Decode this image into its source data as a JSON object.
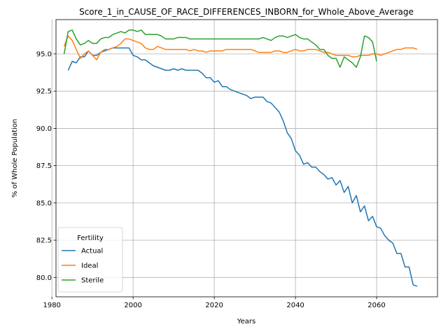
{
  "chart_data": {
    "type": "line",
    "title": "Score_1_in_CAUSE_OF_RACE_DIFFERENCES_INBORN_for_Whole_Above_Average",
    "xlabel": "Years",
    "ylabel": "% of Whole Population",
    "xlim": [
      1981,
      2075
    ],
    "ylim": [
      78.7,
      97.3
    ],
    "xticks": [
      1980,
      2000,
      2020,
      2040,
      2060
    ],
    "yticks": [
      80.0,
      82.5,
      85.0,
      87.5,
      90.0,
      92.5,
      95.0
    ],
    "xtick_labels": [
      "1980",
      "2000",
      "2020",
      "2040",
      "2060"
    ],
    "ytick_labels": [
      "80.0",
      "82.5",
      "85.0",
      "87.5",
      "90.0",
      "92.5",
      "95.0"
    ],
    "grid": true,
    "legend": {
      "title": "Fertility",
      "placement": "lower-left",
      "entries": [
        "Actual",
        "Ideal",
        "Sterile"
      ]
    },
    "series": [
      {
        "name": "Actual",
        "color": "#1f77b4",
        "points": [
          [
            1984,
            93.9
          ],
          [
            1985,
            94.5
          ],
          [
            1986,
            94.4
          ],
          [
            1987,
            94.8
          ],
          [
            1988,
            94.8
          ],
          [
            1989,
            95.2
          ],
          [
            1990,
            94.9
          ],
          [
            1991,
            94.9
          ],
          [
            1992,
            95.1
          ],
          [
            1993,
            95.2
          ],
          [
            1994,
            95.3
          ],
          [
            1995,
            95.4
          ],
          [
            1996,
            95.4
          ],
          [
            1997,
            95.4
          ],
          [
            1998,
            95.4
          ],
          [
            1999,
            95.4
          ],
          [
            2000,
            94.9
          ],
          [
            2001,
            94.8
          ],
          [
            2002,
            94.6
          ],
          [
            2003,
            94.6
          ],
          [
            2004,
            94.4
          ],
          [
            2005,
            94.2
          ],
          [
            2006,
            94.1
          ],
          [
            2007,
            94.0
          ],
          [
            2008,
            93.9
          ],
          [
            2009,
            93.9
          ],
          [
            2010,
            94.0
          ],
          [
            2011,
            93.9
          ],
          [
            2012,
            94.0
          ],
          [
            2013,
            93.9
          ],
          [
            2014,
            93.9
          ],
          [
            2015,
            93.9
          ],
          [
            2016,
            93.9
          ],
          [
            2017,
            93.7
          ],
          [
            2018,
            93.4
          ],
          [
            2019,
            93.4
          ],
          [
            2020,
            93.1
          ],
          [
            2021,
            93.2
          ],
          [
            2022,
            92.8
          ],
          [
            2023,
            92.8
          ],
          [
            2024,
            92.6
          ],
          [
            2025,
            92.5
          ],
          [
            2026,
            92.4
          ],
          [
            2027,
            92.3
          ],
          [
            2028,
            92.2
          ],
          [
            2029,
            92.0
          ],
          [
            2030,
            92.1
          ],
          [
            2031,
            92.1
          ],
          [
            2032,
            92.1
          ],
          [
            2033,
            91.8
          ],
          [
            2034,
            91.7
          ],
          [
            2035,
            91.4
          ],
          [
            2036,
            91.1
          ],
          [
            2037,
            90.5
          ],
          [
            2038,
            89.7
          ],
          [
            2039,
            89.3
          ],
          [
            2040,
            88.5
          ],
          [
            2041,
            88.2
          ],
          [
            2042,
            87.6
          ],
          [
            2043,
            87.7
          ],
          [
            2044,
            87.4
          ],
          [
            2045,
            87.4
          ],
          [
            2046,
            87.1
          ],
          [
            2047,
            86.9
          ],
          [
            2048,
            86.6
          ],
          [
            2049,
            86.7
          ],
          [
            2050,
            86.2
          ],
          [
            2051,
            86.5
          ],
          [
            2052,
            85.7
          ],
          [
            2053,
            86.1
          ],
          [
            2054,
            85.0
          ],
          [
            2055,
            85.5
          ],
          [
            2056,
            84.4
          ],
          [
            2057,
            84.8
          ],
          [
            2058,
            83.8
          ],
          [
            2059,
            84.1
          ],
          [
            2060,
            83.4
          ],
          [
            2061,
            83.3
          ],
          [
            2062,
            82.8
          ],
          [
            2063,
            82.5
          ],
          [
            2064,
            82.3
          ],
          [
            2065,
            81.6
          ],
          [
            2066,
            81.6
          ],
          [
            2067,
            80.7
          ],
          [
            2068,
            80.7
          ],
          [
            2069,
            79.5
          ],
          [
            2070,
            79.4
          ]
        ]
      },
      {
        "name": "Ideal",
        "color": "#ff7f0e",
        "points": [
          [
            1983,
            95.5
          ],
          [
            1984,
            96.2
          ],
          [
            1985,
            95.9
          ],
          [
            1986,
            95.3
          ],
          [
            1987,
            94.7
          ],
          [
            1988,
            95.0
          ],
          [
            1989,
            95.2
          ],
          [
            1990,
            94.9
          ],
          [
            1991,
            94.6
          ],
          [
            1992,
            95.1
          ],
          [
            1993,
            95.3
          ],
          [
            1994,
            95.3
          ],
          [
            1995,
            95.4
          ],
          [
            1996,
            95.5
          ],
          [
            1997,
            95.7
          ],
          [
            1998,
            96.0
          ],
          [
            1999,
            96.0
          ],
          [
            2000,
            95.9
          ],
          [
            2001,
            95.8
          ],
          [
            2002,
            95.7
          ],
          [
            2003,
            95.4
          ],
          [
            2004,
            95.3
          ],
          [
            2005,
            95.3
          ],
          [
            2006,
            95.5
          ],
          [
            2007,
            95.4
          ],
          [
            2008,
            95.3
          ],
          [
            2009,
            95.3
          ],
          [
            2010,
            95.3
          ],
          [
            2011,
            95.3
          ],
          [
            2012,
            95.3
          ],
          [
            2013,
            95.3
          ],
          [
            2014,
            95.2
          ],
          [
            2015,
            95.3
          ],
          [
            2016,
            95.2
          ],
          [
            2017,
            95.2
          ],
          [
            2018,
            95.1
          ],
          [
            2019,
            95.2
          ],
          [
            2020,
            95.2
          ],
          [
            2021,
            95.2
          ],
          [
            2022,
            95.2
          ],
          [
            2023,
            95.3
          ],
          [
            2024,
            95.3
          ],
          [
            2025,
            95.3
          ],
          [
            2026,
            95.3
          ],
          [
            2027,
            95.3
          ],
          [
            2028,
            95.3
          ],
          [
            2029,
            95.3
          ],
          [
            2030,
            95.2
          ],
          [
            2031,
            95.1
          ],
          [
            2032,
            95.1
          ],
          [
            2033,
            95.1
          ],
          [
            2034,
            95.1
          ],
          [
            2035,
            95.2
          ],
          [
            2036,
            95.2
          ],
          [
            2037,
            95.1
          ],
          [
            2038,
            95.1
          ],
          [
            2039,
            95.2
          ],
          [
            2040,
            95.3
          ],
          [
            2041,
            95.2
          ],
          [
            2042,
            95.2
          ],
          [
            2043,
            95.3
          ],
          [
            2044,
            95.3
          ],
          [
            2045,
            95.3
          ],
          [
            2046,
            95.2
          ],
          [
            2047,
            95.1
          ],
          [
            2048,
            95.1
          ],
          [
            2049,
            95.0
          ],
          [
            2050,
            94.9
          ],
          [
            2051,
            94.9
          ],
          [
            2052,
            94.9
          ],
          [
            2053,
            94.9
          ],
          [
            2054,
            94.8
          ],
          [
            2055,
            94.8
          ],
          [
            2056,
            94.9
          ],
          [
            2057,
            94.9
          ],
          [
            2058,
            94.9
          ],
          [
            2059,
            95.0
          ],
          [
            2060,
            95.0
          ],
          [
            2061,
            94.9
          ],
          [
            2062,
            95.0
          ],
          [
            2063,
            95.1
          ],
          [
            2064,
            95.2
          ],
          [
            2065,
            95.3
          ],
          [
            2066,
            95.3
          ],
          [
            2067,
            95.4
          ],
          [
            2068,
            95.4
          ],
          [
            2069,
            95.4
          ],
          [
            2070,
            95.3
          ]
        ]
      },
      {
        "name": "Sterile",
        "color": "#2ca02c",
        "points": [
          [
            1983,
            95.0
          ],
          [
            1984,
            96.5
          ],
          [
            1985,
            96.6
          ],
          [
            1986,
            96.0
          ],
          [
            1987,
            95.6
          ],
          [
            1988,
            95.7
          ],
          [
            1989,
            95.9
          ],
          [
            1990,
            95.7
          ],
          [
            1991,
            95.7
          ],
          [
            1992,
            96.0
          ],
          [
            1993,
            96.1
          ],
          [
            1994,
            96.1
          ],
          [
            1995,
            96.3
          ],
          [
            1996,
            96.4
          ],
          [
            1997,
            96.5
          ],
          [
            1998,
            96.4
          ],
          [
            1999,
            96.6
          ],
          [
            2000,
            96.6
          ],
          [
            2001,
            96.5
          ],
          [
            2002,
            96.6
          ],
          [
            2003,
            96.3
          ],
          [
            2004,
            96.3
          ],
          [
            2005,
            96.3
          ],
          [
            2006,
            96.3
          ],
          [
            2007,
            96.2
          ],
          [
            2008,
            96.0
          ],
          [
            2009,
            96.0
          ],
          [
            2010,
            96.0
          ],
          [
            2011,
            96.1
          ],
          [
            2012,
            96.1
          ],
          [
            2013,
            96.1
          ],
          [
            2014,
            96.0
          ],
          [
            2015,
            96.0
          ],
          [
            2016,
            96.0
          ],
          [
            2017,
            96.0
          ],
          [
            2018,
            96.0
          ],
          [
            2019,
            96.0
          ],
          [
            2020,
            96.0
          ],
          [
            2021,
            96.0
          ],
          [
            2022,
            96.0
          ],
          [
            2023,
            96.0
          ],
          [
            2024,
            96.0
          ],
          [
            2025,
            96.0
          ],
          [
            2026,
            96.0
          ],
          [
            2027,
            96.0
          ],
          [
            2028,
            96.0
          ],
          [
            2029,
            96.0
          ],
          [
            2030,
            96.0
          ],
          [
            2031,
            96.0
          ],
          [
            2032,
            96.1
          ],
          [
            2033,
            96.0
          ],
          [
            2034,
            95.9
          ],
          [
            2035,
            96.1
          ],
          [
            2036,
            96.2
          ],
          [
            2037,
            96.2
          ],
          [
            2038,
            96.1
          ],
          [
            2039,
            96.2
          ],
          [
            2040,
            96.3
          ],
          [
            2041,
            96.1
          ],
          [
            2042,
            96.0
          ],
          [
            2043,
            96.0
          ],
          [
            2044,
            95.8
          ],
          [
            2045,
            95.6
          ],
          [
            2046,
            95.3
          ],
          [
            2047,
            95.3
          ],
          [
            2048,
            94.9
          ],
          [
            2049,
            94.7
          ],
          [
            2050,
            94.7
          ],
          [
            2051,
            94.1
          ],
          [
            2052,
            94.8
          ],
          [
            2053,
            94.6
          ],
          [
            2054,
            94.4
          ],
          [
            2055,
            94.1
          ],
          [
            2056,
            94.8
          ],
          [
            2057,
            96.2
          ],
          [
            2058,
            96.1
          ],
          [
            2059,
            95.8
          ],
          [
            2060,
            94.5
          ]
        ]
      }
    ]
  }
}
